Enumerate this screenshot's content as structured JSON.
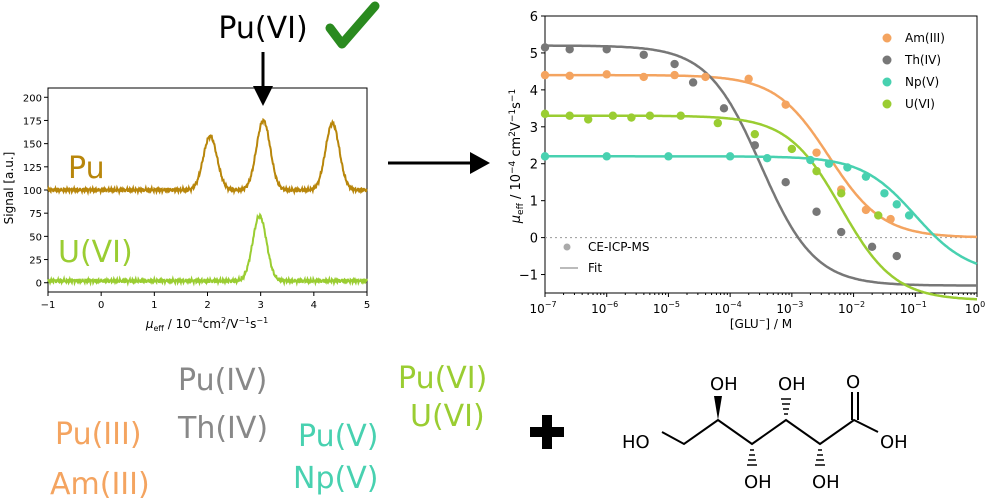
{
  "left_plot": {
    "header_label": "Pu(VI)",
    "check_color": "#2a8a1f",
    "ylabel": "Signal [a.u.]",
    "xlabel_main": "μ",
    "xlabel_sub": "eff",
    "xlabel_rest": " / 10",
    "xlabel_exp1": "−4",
    "xlabel_mid": "cm",
    "xlabel_exp2": "2",
    "xlabel_mid2": "/V",
    "xlabel_exp3": "−1",
    "xlabel_mid3": "s",
    "xlabel_exp4": "−1",
    "series_labels": [
      "Pu",
      "U(VI)"
    ],
    "colors": {
      "Pu": "#b8860b",
      "U(VI)": "#9acd32"
    }
  },
  "chart_data": [
    {
      "type": "line",
      "title": "",
      "xlim": [
        -1,
        5
      ],
      "ylim": [
        -10,
        210
      ],
      "x_ticks": [
        -1,
        0,
        1,
        2,
        3,
        4,
        5
      ],
      "y_ticks": [
        0,
        25,
        50,
        75,
        100,
        125,
        150,
        175,
        200
      ],
      "grid": false,
      "series": [
        {
          "name": "Pu",
          "baseline": 100,
          "peaks": [
            {
              "x": 2.05,
              "h": 58
            },
            {
              "x": 3.05,
              "h": 75
            },
            {
              "x": 4.35,
              "h": 72
            }
          ]
        },
        {
          "name": "U(VI)",
          "baseline": 2,
          "peaks": [
            {
              "x": 2.98,
              "h": 70
            }
          ]
        }
      ]
    },
    {
      "type": "scatter",
      "title": "",
      "x_scale": "log",
      "xlim": [
        1e-07,
        1
      ],
      "ylim": [
        -1.5,
        6
      ],
      "x_tick_exponents": [
        "−7",
        "−6",
        "−5",
        "−4",
        "−3",
        "−2",
        "−1",
        "0"
      ],
      "y_ticks": [
        -1,
        0,
        1,
        2,
        3,
        4,
        5,
        6
      ],
      "xlabel": "[GLU",
      "xlabel_sup": "−",
      "xlabel_tail": "] / M",
      "ylabel_main": "μ",
      "ylabel_sub": "eff",
      "ylabel_rest": " / 10",
      "ylabel_exp1": "−4",
      "ylabel_mid": " cm",
      "ylabel_exp2": "2",
      "ylabel_mid2": "V",
      "ylabel_exp3": "−1",
      "ylabel_mid3": "s",
      "ylabel_exp4": "−1",
      "legend_position": "top-right",
      "series": [
        {
          "name": "Am(III)",
          "color": "#f4a460",
          "mu0": 4.4,
          "mu1": 0.0,
          "logK": -2.4,
          "points": [
            [
              -7,
              4.4
            ],
            [
              -6.6,
              4.38
            ],
            [
              -6,
              4.42
            ],
            [
              -5.4,
              4.35
            ],
            [
              -4.9,
              4.4
            ],
            [
              -4.4,
              4.35
            ],
            [
              -3.7,
              4.3
            ],
            [
              -3.1,
              3.6
            ],
            [
              -2.6,
              2.3
            ],
            [
              -2.2,
              1.3
            ],
            [
              -1.8,
              0.75
            ],
            [
              -1.4,
              0.5
            ]
          ]
        },
        {
          "name": "Th(IV)",
          "color": "#777777",
          "mu0": 5.2,
          "mu1": -1.3,
          "logK": -3.5,
          "points": [
            [
              -7,
              5.15
            ],
            [
              -6.6,
              5.1
            ],
            [
              -6,
              5.1
            ],
            [
              -5.4,
              4.95
            ],
            [
              -4.9,
              4.7
            ],
            [
              -4.6,
              4.2
            ],
            [
              -4.1,
              3.5
            ],
            [
              -3.6,
              2.5
            ],
            [
              -3.1,
              1.5
            ],
            [
              -2.6,
              0.7
            ],
            [
              -2.2,
              0.15
            ],
            [
              -1.7,
              -0.25
            ],
            [
              -1.3,
              -0.5
            ]
          ]
        },
        {
          "name": "Np(V)",
          "color": "#48d1b0",
          "mu0": 2.2,
          "mu1": -1.0,
          "logK": -1.0,
          "points": [
            [
              -7,
              2.2
            ],
            [
              -6,
              2.2
            ],
            [
              -5,
              2.2
            ],
            [
              -4,
              2.2
            ],
            [
              -3.4,
              2.15
            ],
            [
              -2.7,
              2.1
            ],
            [
              -2.4,
              2.0
            ],
            [
              -2.1,
              1.9
            ],
            [
              -1.8,
              1.65
            ],
            [
              -1.5,
              1.2
            ],
            [
              -1.3,
              0.9
            ],
            [
              -1.1,
              0.6
            ]
          ]
        },
        {
          "name": "U(VI)",
          "color": "#9acd32",
          "mu0": 3.3,
          "mu1": -1.7,
          "logK": -2.2,
          "points": [
            [
              -7,
              3.35
            ],
            [
              -6.6,
              3.3
            ],
            [
              -6.3,
              3.2
            ],
            [
              -5.9,
              3.3
            ],
            [
              -5.6,
              3.25
            ],
            [
              -5.3,
              3.3
            ],
            [
              -4.8,
              3.3
            ],
            [
              -4.2,
              3.1
            ],
            [
              -3.6,
              2.8
            ],
            [
              -3.0,
              2.4
            ],
            [
              -2.6,
              1.8
            ],
            [
              -2.2,
              1.2
            ],
            [
              -1.6,
              0.6
            ]
          ]
        }
      ],
      "marker_legend": "CE-ICP-MS",
      "line_legend": "Fit",
      "reference_line_y": 0
    }
  ],
  "bottom": {
    "groups": [
      {
        "lines": [
          "Pu(III)",
          "Am(III)"
        ],
        "color": "#f4a460"
      },
      {
        "lines": [
          "Pu(IV)",
          "Th(IV)"
        ],
        "color": "#888888"
      },
      {
        "lines": [
          "Pu(V)",
          "Np(V)"
        ],
        "color": "#48d1b0"
      },
      {
        "lines": [
          "Pu(VI)",
          "U(VI)"
        ],
        "color": "#9acd32"
      }
    ],
    "plus": "+",
    "molecule": {
      "ho": "HO",
      "oh": "OH",
      "o": "O"
    }
  }
}
